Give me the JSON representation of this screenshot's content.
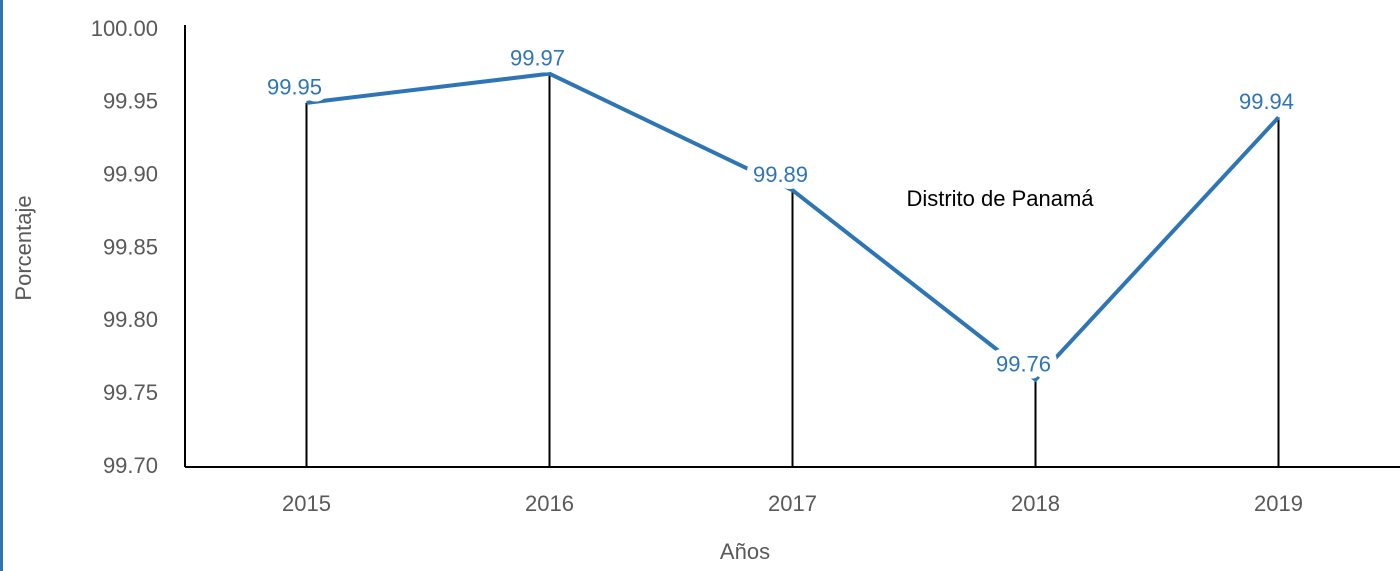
{
  "chart_data": {
    "type": "line",
    "categories": [
      "2015",
      "2016",
      "2017",
      "2018",
      "2019"
    ],
    "series": [
      {
        "name": "Distrito de Panamá",
        "color": "#2e75b6",
        "values": [
          99.95,
          99.97,
          99.89,
          99.76,
          99.94
        ]
      }
    ],
    "annotation": "Distrito de Panamá",
    "x_label": "Años",
    "y_label": "Porcentaje",
    "ylim": [
      99.7,
      100
    ],
    "yticks": [
      {
        "value": 99.7,
        "label": "99.70"
      },
      99.75,
      {
        "value": 99.8,
        "label": "99.80"
      },
      99.85,
      {
        "value": 99.9,
        "label": "99.90"
      },
      99.95,
      {
        "value": 100,
        "label": "100.00"
      }
    ],
    "drop_lines": true
  }
}
